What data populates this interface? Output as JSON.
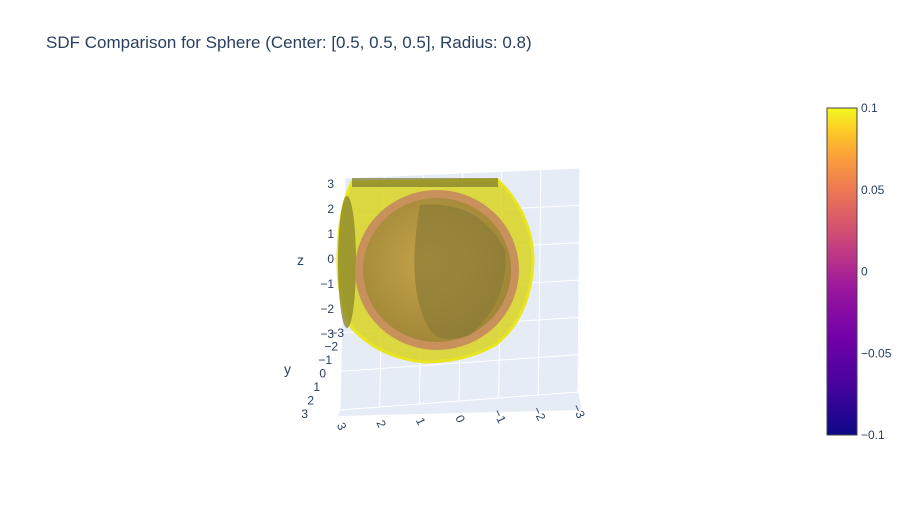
{
  "title": "SDF Comparison for Sphere (Center: [0.5, 0.5, 0.5], Radius: 0.8)",
  "chart_data": {
    "type": "isosurface",
    "sphere": {
      "center": [
        0.5,
        0.5,
        0.5
      ],
      "radius": 0.8
    },
    "isosurface_values": [
      -0.1,
      0,
      0.1
    ],
    "scene": {
      "xaxis": {
        "title": "",
        "range": [
          -3,
          3
        ],
        "ticks": [
          "3",
          "2",
          "1",
          "0",
          "−1",
          "−2",
          "−3"
        ]
      },
      "yaxis": {
        "title": "y",
        "range": [
          -3,
          3
        ],
        "ticks": [
          "−3",
          "−2",
          "−1",
          "0",
          "1",
          "2",
          "3"
        ]
      },
      "zaxis": {
        "title": "z",
        "range": [
          -3,
          3
        ],
        "ticks": [
          "3",
          "2",
          "1",
          "0",
          "−1",
          "−2",
          "−3"
        ]
      },
      "grid": true,
      "background": "#e5ecf6"
    },
    "colorbar": {
      "colorscale": "plasma",
      "range": [
        -0.1,
        0.1
      ],
      "tickvals": [
        0.1,
        0.05,
        0,
        -0.05,
        -0.1
      ],
      "ticktext": [
        "0.1",
        "0.05",
        "0",
        "−0.05",
        "−0.1"
      ],
      "placement": "right"
    },
    "colors": {
      "outer_surface": "#e8e21e",
      "inner_surface": "#c77a5a",
      "grid": "#ffffff",
      "text": "#2a3f5f"
    }
  }
}
